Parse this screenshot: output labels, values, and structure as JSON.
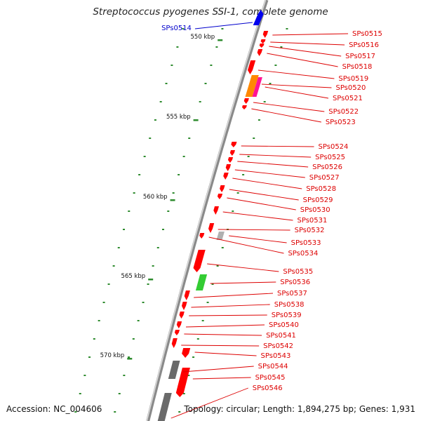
{
  "title": "Streptococcus pyogenes SSI-1, complete genome",
  "footer": {
    "accession": "Accession: NC_004606",
    "topology": "Topology: circular; Length: 1,894,275 bp; Genes: 1,931"
  },
  "colors": {
    "backbone": "#8a8a8a",
    "gene_default": "#ff0000",
    "gene_blue": "#0000ee",
    "gene_orange": "#ff8800",
    "gene_magenta": "#ff1493",
    "gene_grey": "#b0b0b0",
    "gene_green": "#33cc33",
    "gene_darkgrey": "#6a6a6a",
    "tick": "#2e8b2e",
    "label_forward": "#0000cc",
    "label_reverse": "#dd0000"
  },
  "scale": {
    "ticks": [
      "550 kbp",
      "555 kbp",
      "560 kbp",
      "565 kbp",
      "570 kbp"
    ]
  },
  "genes": [
    {
      "id": "SPs0514",
      "strand": "forward",
      "color": "blue"
    },
    {
      "id": "SPs0515",
      "strand": "reverse",
      "color": "red"
    },
    {
      "id": "SPs0516",
      "strand": "reverse",
      "color": "red"
    },
    {
      "id": "SPs0517",
      "strand": "reverse",
      "color": "red"
    },
    {
      "id": "SPs0518",
      "strand": "reverse",
      "color": "red"
    },
    {
      "id": "SPs0519",
      "strand": "reverse",
      "color": "red"
    },
    {
      "id": "SPs0520",
      "strand": "reverse",
      "color": "orange"
    },
    {
      "id": "SPs0521",
      "strand": "reverse",
      "color": "magenta"
    },
    {
      "id": "SPs0522",
      "strand": "reverse",
      "color": "red"
    },
    {
      "id": "SPs0523",
      "strand": "reverse",
      "color": "red"
    },
    {
      "id": "SPs0524",
      "strand": "reverse",
      "color": "red"
    },
    {
      "id": "SPs0525",
      "strand": "reverse",
      "color": "red"
    },
    {
      "id": "SPs0526",
      "strand": "reverse",
      "color": "red"
    },
    {
      "id": "SPs0527",
      "strand": "reverse",
      "color": "red"
    },
    {
      "id": "SPs0528",
      "strand": "reverse",
      "color": "red"
    },
    {
      "id": "SPs0529",
      "strand": "reverse",
      "color": "red"
    },
    {
      "id": "SPs0530",
      "strand": "reverse",
      "color": "red"
    },
    {
      "id": "SPs0531",
      "strand": "reverse",
      "color": "red"
    },
    {
      "id": "SPs0532",
      "strand": "reverse",
      "color": "red"
    },
    {
      "id": "SPs0533",
      "strand": "reverse",
      "color": "grey"
    },
    {
      "id": "SPs0534",
      "strand": "reverse",
      "color": "red"
    },
    {
      "id": "SPs0535",
      "strand": "reverse",
      "color": "red"
    },
    {
      "id": "SPs0536",
      "strand": "reverse",
      "color": "green"
    },
    {
      "id": "SPs0537",
      "strand": "reverse",
      "color": "red"
    },
    {
      "id": "SPs0538",
      "strand": "reverse",
      "color": "red"
    },
    {
      "id": "SPs0539",
      "strand": "reverse",
      "color": "red"
    },
    {
      "id": "SPs0540",
      "strand": "reverse",
      "color": "red"
    },
    {
      "id": "SPs0541",
      "strand": "reverse",
      "color": "red"
    },
    {
      "id": "SPs0542",
      "strand": "reverse",
      "color": "red"
    },
    {
      "id": "SPs0543",
      "strand": "reverse",
      "color": "red"
    },
    {
      "id": "SPs0544",
      "strand": "reverse",
      "color": "darkgrey"
    },
    {
      "id": "SPs0545",
      "strand": "reverse",
      "color": "red"
    },
    {
      "id": "SPs0546",
      "strand": "reverse",
      "color": "darkgrey"
    }
  ]
}
